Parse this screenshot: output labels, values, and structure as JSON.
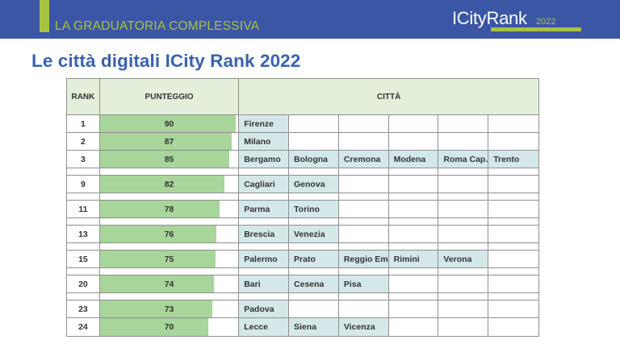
{
  "header": {
    "section_title": "LA GRADUATORIA COMPLESSIVA",
    "brand_name": "ICityRank",
    "brand_year": "2022",
    "colors": {
      "bar_blue": "#3a56a5",
      "accent_green": "#a9c23f"
    }
  },
  "page_title": "Le città digitali ICity Rank 2022",
  "table": {
    "columns": {
      "rank": "RANK",
      "score": "PUNTEGGIO",
      "cities": "CITTÀ"
    },
    "max_score": 90,
    "colors": {
      "header_bg": "#e3efdb",
      "bar": "#a8d59a",
      "city_bg": "#d5e8e9"
    },
    "rows": [
      {
        "rank": "1",
        "score": "90",
        "score_value": 90,
        "cities": [
          "Firenze"
        ]
      },
      {
        "rank": "2",
        "score": "87",
        "score_value": 87,
        "cities": [
          "Milano"
        ]
      },
      {
        "rank": "3",
        "score": "85",
        "score_value": 85,
        "cities": [
          "Bergamo",
          "Bologna",
          "Cremona",
          "Modena",
          "Roma Cap.",
          "Trento"
        ]
      },
      {
        "rank": "9",
        "score": "82",
        "score_value": 82,
        "cities": [
          "Cagliari",
          "Genova"
        ]
      },
      {
        "rank": "11",
        "score": "78",
        "score_value": 78,
        "cities": [
          "Parma",
          "Torino"
        ]
      },
      {
        "rank": "13",
        "score": "76",
        "score_value": 76,
        "cities": [
          "Brescia",
          "Venezia"
        ]
      },
      {
        "rank": "15",
        "score": "75",
        "score_value": 75,
        "cities": [
          "Palermo",
          "Prato",
          "Reggio Em.",
          "Rimini",
          "Verona"
        ]
      },
      {
        "rank": "20",
        "score": "74",
        "score_value": 74,
        "cities": [
          "Bari",
          "Cesena",
          "Pisa"
        ]
      },
      {
        "rank": "23",
        "score": "73",
        "score_value": 73,
        "cities": [
          "Padova"
        ]
      },
      {
        "rank": "24",
        "score": "70",
        "score_value": 70,
        "cities": [
          "Lecce",
          "Siena",
          "Vicenza"
        ]
      }
    ]
  }
}
